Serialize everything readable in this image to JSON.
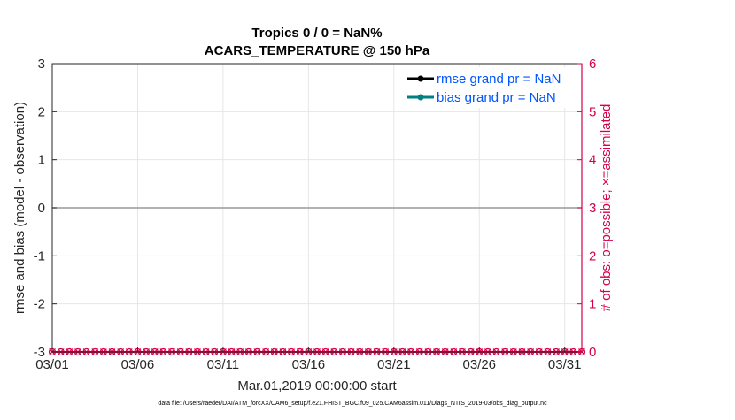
{
  "chart_data": {
    "type": "line",
    "title_line1": "Tropics 0 / 0 = NaN%",
    "title_line2": "ACARS_TEMPERATURE @ 150 hPa",
    "xlabel": "Mar.01,2019 00:00:00 start",
    "ylabel_left": "rmse and bias (model - observation)",
    "ylabel_right": "# of obs: o=possible; ×=assimilated",
    "footer": "data file: /Users/raeder/DAI/ATM_forcXX/CAM6_setup/f.e21.FHIST_BGC.f09_025.CAM6assim.011/Diags_NTrS_2019-03/obs_diag_output.nc",
    "x_ticks": [
      "03/01",
      "03/06",
      "03/11",
      "03/16",
      "03/21",
      "03/26",
      "03/31"
    ],
    "x_tick_days": [
      1,
      6,
      11,
      16,
      21,
      26,
      31
    ],
    "xlim": [
      1,
      32
    ],
    "ylim_left": [
      -3,
      3
    ],
    "y_ticks_left": [
      "3",
      "2",
      "1",
      "0",
      "-1",
      "-2",
      "-3"
    ],
    "ylim_right": [
      0,
      6
    ],
    "y_ticks_right": [
      "6",
      "5",
      "4",
      "3",
      "2",
      "1",
      "0"
    ],
    "grid": true,
    "legend_placement": "top-right",
    "series": [
      {
        "name": "rmse grand pr = NaN",
        "color": "#000000",
        "values": []
      },
      {
        "name": "bias grand pr = NaN",
        "color": "#008080",
        "values": []
      }
    ],
    "zero_line": 0,
    "obs_counts": {
      "days": [
        1,
        1.5,
        2,
        2.5,
        3,
        3.5,
        4,
        4.5,
        5,
        5.5,
        6,
        6.5,
        7,
        7.5,
        8,
        8.5,
        9,
        9.5,
        10,
        10.5,
        11,
        11.5,
        12,
        12.5,
        13,
        13.5,
        14,
        14.5,
        15,
        15.5,
        16,
        16.5,
        17,
        17.5,
        18,
        18.5,
        19,
        19.5,
        20,
        20.5,
        21,
        21.5,
        22,
        22.5,
        23,
        23.5,
        24,
        24.5,
        25,
        25.5,
        26,
        26.5,
        27,
        27.5,
        28,
        28.5,
        29,
        29.5,
        30,
        30.5,
        31,
        31.5,
        32
      ],
      "possible": 0,
      "assimilated": 0,
      "color": "#d6004b"
    },
    "colors": {
      "axis": "#262626",
      "right_axis": "#d6004b",
      "grid": "#e6e6e6",
      "zero_line": "#999999",
      "legend_text": "#0055ff"
    }
  }
}
